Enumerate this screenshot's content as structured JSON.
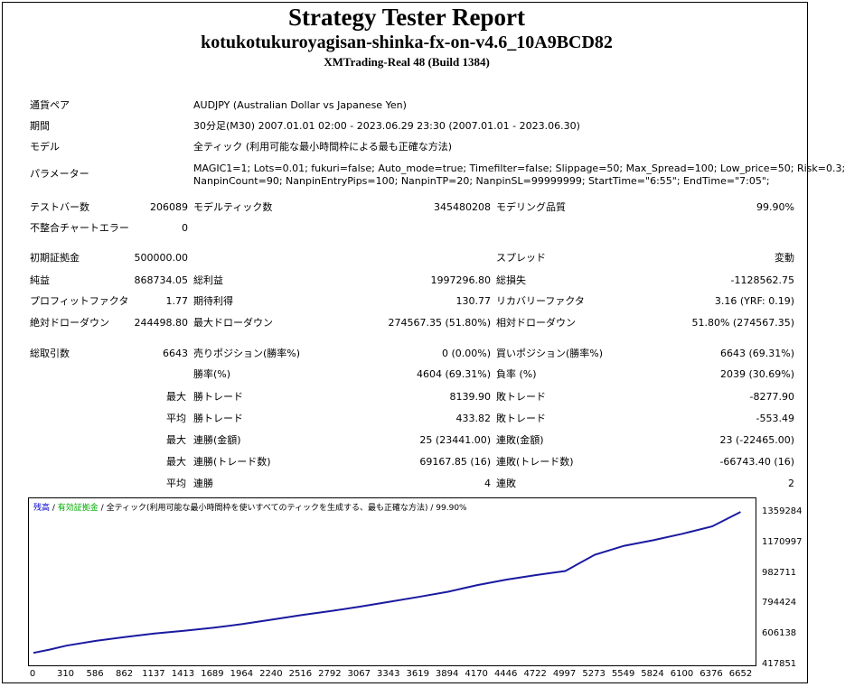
{
  "report": {
    "title": "Strategy Tester Report",
    "ea_name": "kotukotukuroyagisan-shinka-fx-on-v4.6_10A9BCD82",
    "server": "XMTrading-Real 48 (Build 1384)"
  },
  "info": {
    "symbol_label": "通貨ペア",
    "symbol_value": "AUDJPY (Australian Dollar vs Japanese Yen)",
    "period_label": "期間",
    "period_value": "30分足(M30) 2007.01.01 02:00 - 2023.06.29 23:30 (2007.01.01 - 2023.06.30)",
    "model_label": "モデル",
    "model_value": "全ティック (利用可能な最小時間枠による最も正確な方法)",
    "params_label": "パラメーター",
    "params_line1": "MAGIC1=1; Lots=0.01; fukuri=false; Auto_mode=true; Timefilter=false; Slippage=50; Max_Spread=100; Low_price=50; Risk=0.3;",
    "params_line2": "NanpinCount=90; NanpinEntryPips=100; NanpinTP=20; NanpinSL=99999999; StartTime=\"6:55\"; EndTime=\"7:05\";"
  },
  "stats": {
    "bars_label": "テストバー数",
    "bars_value": "206089",
    "ticks_label": "モデルティック数",
    "ticks_value": "345480208",
    "quality_label": "モデリング品質",
    "quality_value": "99.90%",
    "mismatch_label": "不整合チャートエラー",
    "mismatch_value": "0",
    "deposit_label": "初期証拠金",
    "deposit_value": "500000.00",
    "spread_label": "スプレッド",
    "spread_value": "変動",
    "net_label": "純益",
    "net_value": "868734.05",
    "gross_profit_label": "総利益",
    "gross_profit_value": "1997296.80",
    "gross_loss_label": "総損失",
    "gross_loss_value": "-1128562.75",
    "pf_label": "プロフィットファクタ",
    "pf_value": "1.77",
    "expected_label": "期待利得",
    "expected_value": "130.77",
    "recovery_label": "リカバリーファクタ",
    "recovery_value": "3.16 (YRF: 0.19)",
    "abs_dd_label": "絶対ドローダウン",
    "abs_dd_value": "244498.80",
    "max_dd_label": "最大ドローダウン",
    "max_dd_value": "274567.35 (51.80%)",
    "rel_dd_label": "相対ドローダウン",
    "rel_dd_value": "51.80% (274567.35)",
    "trades_label": "総取引数",
    "trades_value": "6643",
    "short_label": "売りポジション(勝率%)",
    "short_value": "0 (0.00%)",
    "long_label": "買いポジション(勝率%)",
    "long_value": "6643 (69.31%)",
    "win_rate_label": "勝率(%)",
    "win_rate_value": "4604 (69.31%)",
    "loss_rate_label": "負率 (%)",
    "loss_rate_value": "2039 (30.69%)",
    "max_word": "最大",
    "avg_word": "平均",
    "largest_win_label": "勝トレード",
    "largest_win_value": "8139.90",
    "largest_loss_label": "敗トレード",
    "largest_loss_value": "-8277.90",
    "avg_win_label": "勝トレード",
    "avg_win_value": "433.82",
    "avg_loss_label": "敗トレード",
    "avg_loss_value": "-553.49",
    "max_consec_wins_label": "連勝(金額)",
    "max_consec_wins_value": "25 (23441.00)",
    "max_consec_losses_label": "連敗(金額)",
    "max_consec_losses_value": "23 (-22465.00)",
    "max_consec_profit_label": "連勝(トレード数)",
    "max_consec_profit_value": "69167.85 (16)",
    "max_consec_loss_label": "連敗(トレード数)",
    "max_consec_loss_value": "-66743.40 (16)",
    "avg_consec_wins_label": "連勝",
    "avg_consec_wins_value": "4",
    "avg_consec_losses_label": "連敗",
    "avg_consec_losses_value": "2"
  },
  "chart_legend": {
    "balance": "残高",
    "sep1": " / ",
    "equity": "有効証拠金",
    "sep2": " / ",
    "model": "全ティック(利用可能な最小時間枠を使いすべてのティックを生成する、最も正確な方法)",
    "quality": " / 99.90%",
    "balance_color": "#0000cc",
    "equity_color": "#00aa00"
  },
  "chart_data": {
    "type": "line",
    "title": "",
    "xlabel": "",
    "ylabel": "",
    "xlim": [
      0,
      6792
    ],
    "ylim": [
      417851,
      1453000
    ],
    "x_ticks": [
      0,
      310,
      586,
      862,
      1137,
      1413,
      1689,
      1964,
      2240,
      2516,
      2792,
      3067,
      3343,
      3619,
      3894,
      4170,
      4446,
      4722,
      4997,
      5273,
      5549,
      5824,
      6100,
      6376,
      6652
    ],
    "y_ticks": [
      417851,
      606138,
      794424,
      982711,
      1170997,
      1359284
    ],
    "grid": false,
    "legend": "top-left",
    "series": [
      {
        "name": "残高",
        "color": "#1a1aa0",
        "x": [
          0,
          150,
          310,
          586,
          862,
          1137,
          1413,
          1689,
          1964,
          2240,
          2516,
          2792,
          3067,
          3343,
          3619,
          3894,
          4170,
          4446,
          4722,
          4997,
          5273,
          5549,
          5824,
          6100,
          6376,
          6643
        ],
        "y": [
          500000,
          520000,
          545000,
          574000,
          598000,
          620000,
          636000,
          655000,
          678000,
          705000,
          733000,
          758000,
          785000,
          815000,
          845000,
          877000,
          918000,
          952000,
          980000,
          1005000,
          1105000,
          1160000,
          1195000,
          1235000,
          1280000,
          1368734
        ]
      },
      {
        "name": "有効証拠金",
        "color": "#00aa00",
        "x": [
          0,
          150,
          310,
          586,
          862,
          1137,
          1413,
          1689,
          1964,
          2240,
          2516,
          2792,
          3067,
          3343,
          3619,
          3894,
          4170,
          4446,
          4722,
          4997,
          5273,
          5549,
          5824,
          6100,
          6376,
          6643
        ],
        "y": [
          500000,
          520000,
          545000,
          574000,
          598000,
          620000,
          636000,
          655000,
          678000,
          705000,
          733000,
          758000,
          785000,
          815000,
          845000,
          877000,
          918000,
          952000,
          980000,
          1005000,
          1105000,
          1160000,
          1195000,
          1235000,
          1280000,
          1368734
        ]
      }
    ]
  }
}
